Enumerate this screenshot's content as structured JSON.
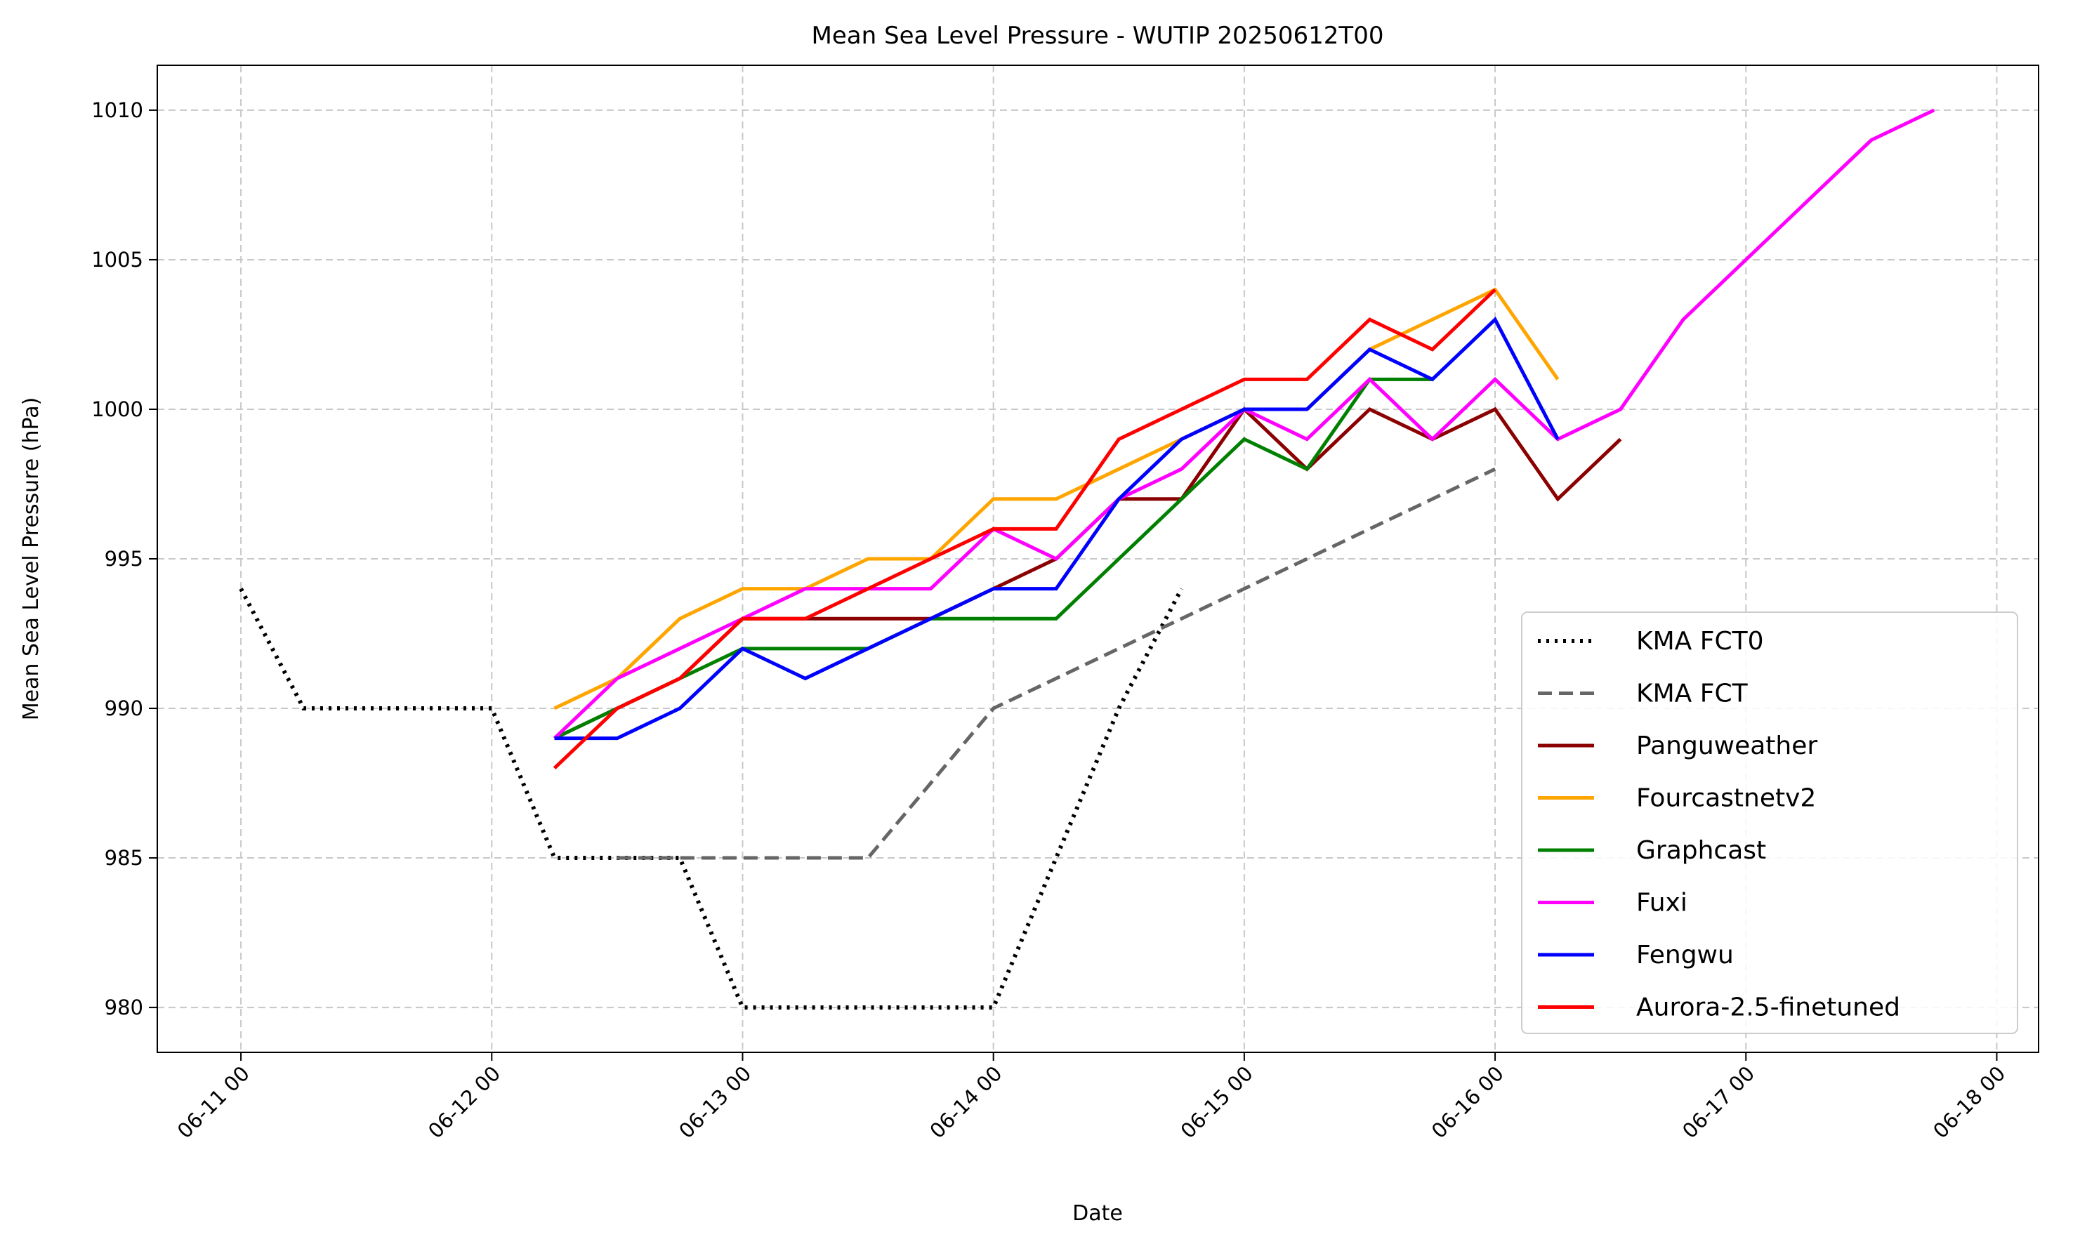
{
  "chart_data": {
    "type": "line",
    "title": "Mean Sea Level Pressure - WUTIP 20250612T00",
    "xlabel": "Date",
    "ylabel": "Mean Sea Level Pressure (hPa)",
    "xlim_hours": [
      -8,
      172
    ],
    "ylim": [
      978.5,
      1011.5
    ],
    "x_ticks": [
      {
        "h": 0,
        "label": "06-11 00"
      },
      {
        "h": 24,
        "label": "06-12 00"
      },
      {
        "h": 48,
        "label": "06-13 00"
      },
      {
        "h": 72,
        "label": "06-14 00"
      },
      {
        "h": 96,
        "label": "06-15 00"
      },
      {
        "h": 120,
        "label": "06-16 00"
      },
      {
        "h": 144,
        "label": "06-17 00"
      },
      {
        "h": 168,
        "label": "06-18 00"
      }
    ],
    "y_ticks": [
      980,
      985,
      990,
      995,
      1000,
      1005,
      1010
    ],
    "grid": true,
    "legend_position": "lower-right",
    "x_unit": "hours since 06-11 00",
    "series": [
      {
        "name": "KMA FCT0",
        "color": "#000000",
        "style": "dotted",
        "x": [
          0,
          6,
          12,
          18,
          24,
          30,
          36,
          42,
          48,
          54,
          60,
          66,
          72,
          78,
          84,
          90
        ],
        "y": [
          994,
          990,
          990,
          990,
          990,
          985,
          985,
          985,
          980,
          980,
          980,
          980,
          980,
          985,
          990,
          994
        ]
      },
      {
        "name": "KMA FCT",
        "color": "#666666",
        "style": "dashed",
        "x": [
          36,
          48,
          60,
          72,
          84,
          96,
          108,
          120
        ],
        "y": [
          985,
          985,
          985,
          990,
          992,
          994,
          996,
          998
        ]
      },
      {
        "name": "Panguweather",
        "color": "#8b0000",
        "style": "solid",
        "x": [
          30,
          36,
          42,
          48,
          54,
          60,
          66,
          72,
          78,
          84,
          90,
          96,
          102,
          108,
          114,
          120,
          126,
          132
        ],
        "y": [
          989,
          990,
          991,
          993,
          993,
          993,
          993,
          994,
          995,
          997,
          997,
          1000,
          998,
          1000,
          999,
          1000,
          997,
          999
        ]
      },
      {
        "name": "Fourcastnetv2",
        "color": "#ffa500",
        "style": "solid",
        "x": [
          30,
          36,
          42,
          48,
          54,
          60,
          66,
          72,
          78,
          84,
          90,
          96,
          102,
          108,
          114,
          120,
          126
        ],
        "y": [
          990,
          991,
          993,
          994,
          994,
          995,
          995,
          997,
          997,
          998,
          999,
          1000,
          1000,
          1002,
          1003,
          1004,
          1001
        ]
      },
      {
        "name": "Graphcast",
        "color": "#008000",
        "style": "solid",
        "x": [
          30,
          36,
          42,
          48,
          54,
          60,
          66,
          72,
          78,
          84,
          90,
          96,
          102,
          108,
          114
        ],
        "y": [
          989,
          990,
          991,
          992,
          992,
          992,
          993,
          993,
          993,
          995,
          997,
          999,
          998,
          1001,
          1001
        ]
      },
      {
        "name": "Fuxi",
        "color": "#ff00ff",
        "style": "solid",
        "x": [
          30,
          36,
          42,
          48,
          54,
          60,
          66,
          72,
          78,
          84,
          90,
          96,
          102,
          108,
          114,
          120,
          126,
          132,
          138,
          144,
          150,
          156,
          162
        ],
        "y": [
          989,
          991,
          992,
          993,
          994,
          994,
          994,
          996,
          995,
          997,
          998,
          1000,
          999,
          1001,
          999,
          1001,
          999,
          1000,
          1003,
          1005,
          1007,
          1009,
          1010
        ]
      },
      {
        "name": "Fengwu",
        "color": "#0000ff",
        "style": "solid",
        "x": [
          30,
          36,
          42,
          48,
          54,
          60,
          66,
          72,
          78,
          84,
          90,
          96,
          102,
          108,
          114,
          120,
          126
        ],
        "y": [
          989,
          989,
          990,
          992,
          991,
          992,
          993,
          994,
          994,
          997,
          999,
          1000,
          1000,
          1002,
          1001,
          1003,
          999
        ]
      },
      {
        "name": "Aurora-2.5-finetuned",
        "color": "#ff0000",
        "style": "solid",
        "x": [
          30,
          36,
          42,
          48,
          54,
          60,
          66,
          72,
          78,
          84,
          90,
          96,
          102,
          108,
          114,
          120
        ],
        "y": [
          988,
          990,
          991,
          993,
          993,
          994,
          995,
          996,
          996,
          999,
          1000,
          1001,
          1001,
          1003,
          1002,
          1004
        ]
      }
    ]
  }
}
